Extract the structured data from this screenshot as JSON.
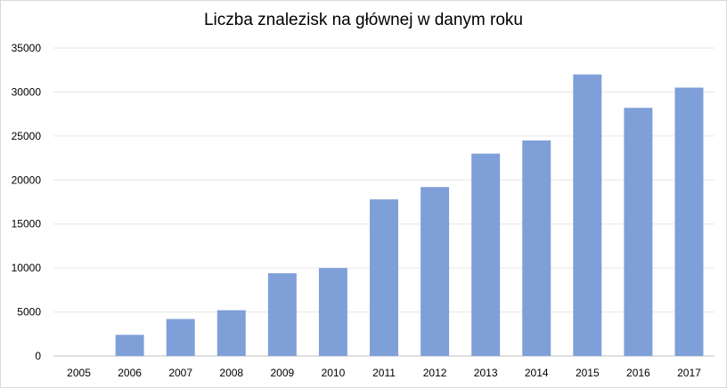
{
  "chart_data": {
    "type": "bar",
    "title": "Liczba znalezisk na głównej w danym roku",
    "xlabel": "",
    "ylabel": "",
    "categories": [
      "2005",
      "2006",
      "2007",
      "2008",
      "2009",
      "2010",
      "2011",
      "2012",
      "2013",
      "2014",
      "2015",
      "2016",
      "2017"
    ],
    "values": [
      0,
      2400,
      4200,
      5200,
      9400,
      10000,
      17800,
      19200,
      23000,
      24500,
      32000,
      28200,
      30500
    ],
    "ylim": [
      0,
      35000
    ],
    "yticks": [
      0,
      5000,
      10000,
      15000,
      20000,
      25000,
      30000,
      35000
    ],
    "grid": true,
    "legend": "none",
    "bar_color": "#7f9fd8",
    "grid_color": "#e6e6e6",
    "axis_color": "#bfbfbf"
  }
}
